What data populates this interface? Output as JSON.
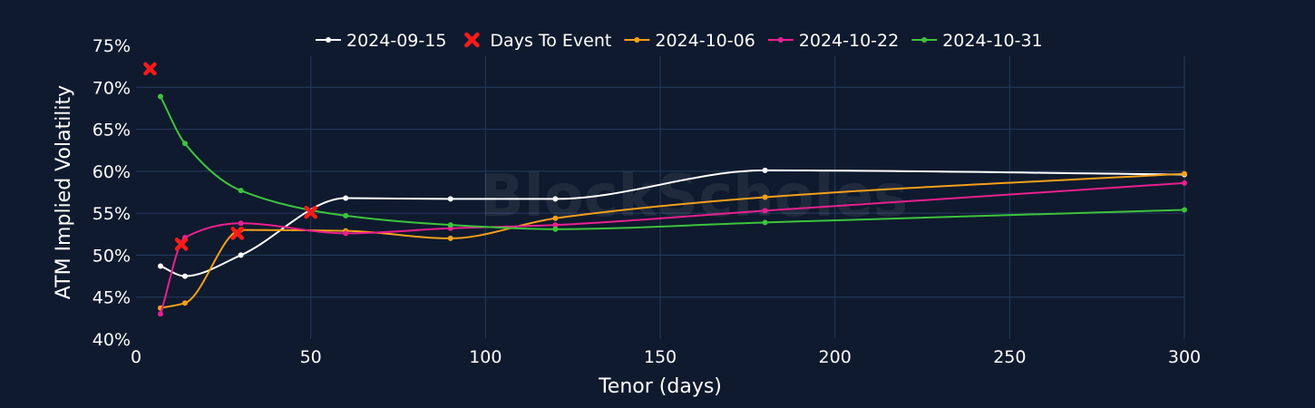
{
  "chart_data": {
    "type": "line",
    "title": "",
    "xlabel": "Tenor (days)",
    "ylabel": "ATM Implied Volatility",
    "xlim": [
      0,
      300
    ],
    "ylim": [
      40,
      75
    ],
    "x_ticks": [
      0,
      50,
      100,
      150,
      200,
      250,
      300
    ],
    "x_tick_labels": [
      "0",
      "50",
      "100",
      "150",
      "200",
      "250",
      "300"
    ],
    "y_ticks": [
      40,
      45,
      50,
      55,
      60,
      65,
      70,
      75
    ],
    "y_tick_labels": [
      "40%",
      "45%",
      "50%",
      "55%",
      "60%",
      "65%",
      "70%",
      "75%"
    ],
    "grid": true,
    "legend_position": "top-center",
    "watermark": "BlockScholes",
    "series": [
      {
        "name": "2024-09-15",
        "kind": "line",
        "color": "#ffffff",
        "x": [
          7,
          14,
          30,
          60,
          90,
          120,
          180,
          300
        ],
        "y": [
          48.7,
          47.5,
          50.0,
          56.8,
          56.7,
          56.7,
          60.1,
          59.6
        ]
      },
      {
        "name": "Days To Event",
        "kind": "marker",
        "color": "#ff1a1a",
        "x": [
          4,
          13,
          29,
          50
        ],
        "y": [
          72.2,
          51.3,
          52.6,
          55.1
        ]
      },
      {
        "name": "2024-10-06",
        "kind": "line",
        "color": "#f5a01a",
        "x": [
          7,
          14,
          30,
          60,
          90,
          120,
          180,
          300
        ],
        "y": [
          43.7,
          44.3,
          53.0,
          52.9,
          52.0,
          54.4,
          56.9,
          59.7
        ]
      },
      {
        "name": "2024-10-22",
        "kind": "line",
        "color": "#e8208f",
        "x": [
          7,
          14,
          30,
          60,
          90,
          120,
          180,
          300
        ],
        "y": [
          43.0,
          52.1,
          53.8,
          52.6,
          53.2,
          53.6,
          55.3,
          58.6
        ]
      },
      {
        "name": "2024-10-31",
        "kind": "line",
        "color": "#3cc43c",
        "x": [
          7,
          14,
          30,
          60,
          90,
          120,
          180,
          300
        ],
        "y": [
          68.9,
          63.3,
          57.7,
          54.7,
          53.6,
          53.1,
          53.9,
          55.4
        ]
      }
    ]
  }
}
